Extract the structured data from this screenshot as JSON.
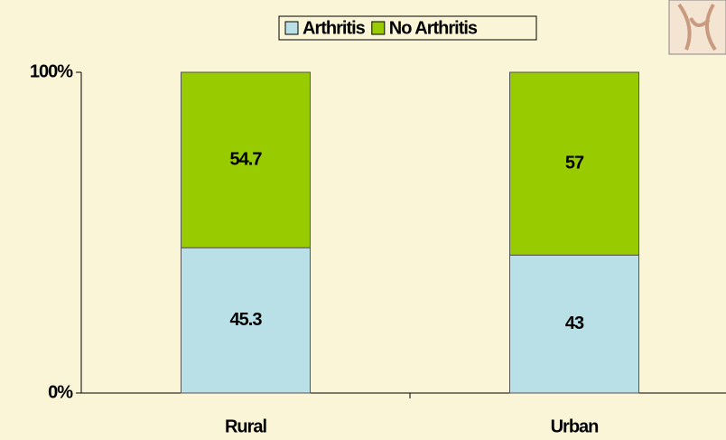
{
  "chart_data": {
    "type": "stacked_bar",
    "categories": [
      "Rural",
      "Urban"
    ],
    "series": [
      {
        "name": "Arthritis",
        "color": "#b8e0e6",
        "values": [
          45.3,
          43
        ]
      },
      {
        "name": "No Arthritis",
        "color": "#99cc00",
        "values": [
          54.7,
          57
        ]
      }
    ],
    "ylim": [
      0,
      100
    ],
    "yticks": [
      {
        "value": 0,
        "label": "0%"
      },
      {
        "value": 100,
        "label": "100%"
      }
    ],
    "legend": "top"
  }
}
